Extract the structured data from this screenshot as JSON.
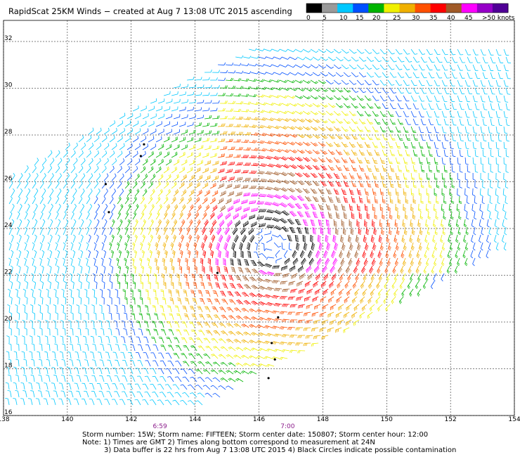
{
  "title": "RapidScat 25KM Winds − created at Aug  7 13:08 UTC 2015 ascending",
  "legend": {
    "labels": [
      "0",
      "5",
      "10",
      "15",
      "20",
      "25",
      "30",
      "35",
      "40",
      "45",
      ">50 knots"
    ],
    "colors": [
      "#000000",
      "#9a9a9a",
      "#00c8ff",
      "#0050ff",
      "#00b400",
      "#f0f000",
      "#f0b000",
      "#ff5000",
      "#ff0000",
      "#a05a28",
      "#ff00ff",
      "#9600c8",
      "#500096"
    ]
  },
  "map": {
    "lon_ticks": [
      "138",
      "140",
      "142",
      "144",
      "146",
      "148",
      "150",
      "152",
      "154"
    ],
    "lat_ticks": [
      "16",
      "18",
      "20",
      "22",
      "24",
      "26",
      "28",
      "30",
      "32"
    ],
    "lon_range": [
      138,
      154
    ],
    "lat_range": [
      16,
      32
    ],
    "time_labels": [
      {
        "text": "6:59",
        "lon": 142.9
      },
      {
        "text": "7:00",
        "lon": 146.9
      }
    ],
    "storm_center": {
      "lon": 146.4,
      "lat": 23.2
    }
  },
  "footer": {
    "line1": "Storm number: 15W;  Storm name: FIFTEEN;  Storm center date: 150807;  Storm center hour: 12:00",
    "line2": "Note: 1) Times are GMT  2) Times along bottom correspond to measurement at 24N",
    "line3": "3) Data buffer is 22 hrs from Aug  7 13:08 UTC 2015  4) Black Circles indicate possible contamination"
  }
}
